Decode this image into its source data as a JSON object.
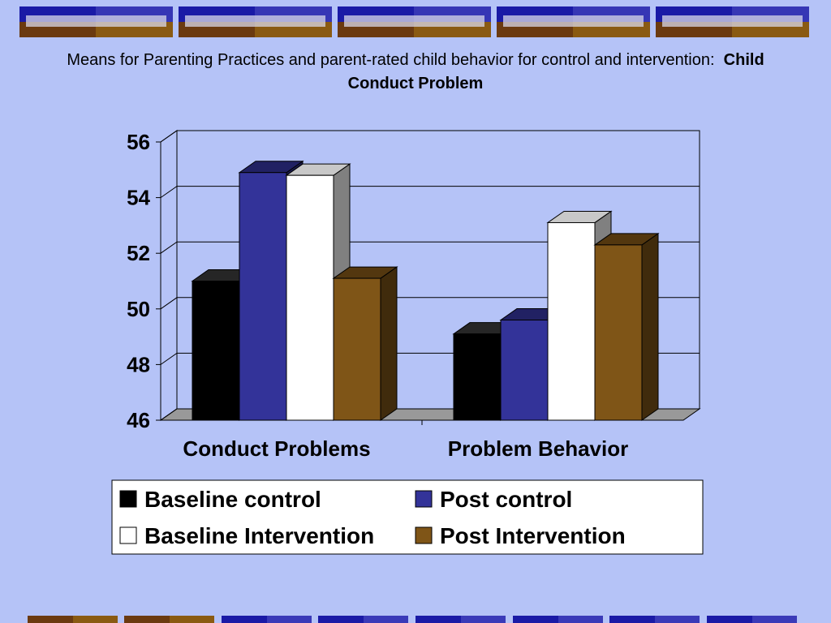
{
  "slide": {
    "title_text": "Means for Parenting Practices and parent-rated child behavior for control and intervention:",
    "title_bold": "Child Conduct Problem"
  },
  "colors": {
    "background": "#b5c3f7",
    "banner_blue": "#1a1aa6",
    "banner_gold": "#8a5a12",
    "banner_brown": "#6b3a10"
  },
  "chart_data": {
    "type": "bar",
    "style": "3d-clustered-column",
    "categories": [
      "Conduct Problems",
      "Problem Behavior"
    ],
    "series": [
      {
        "name": "Baseline control",
        "color": "#000000",
        "values": [
          51.0,
          49.1
        ]
      },
      {
        "name": "Post control",
        "color": "#333399",
        "values": [
          54.9,
          49.6
        ]
      },
      {
        "name": "Baseline Intervention",
        "color": "#ffffff",
        "values": [
          54.8,
          53.1
        ]
      },
      {
        "name": "Post Intervention",
        "color": "#7f5517",
        "values": [
          51.1,
          52.3
        ]
      }
    ],
    "ylim": [
      46,
      56
    ],
    "yticks": [
      46,
      48,
      50,
      52,
      54,
      56
    ],
    "grid": true,
    "legend_position": "bottom"
  }
}
